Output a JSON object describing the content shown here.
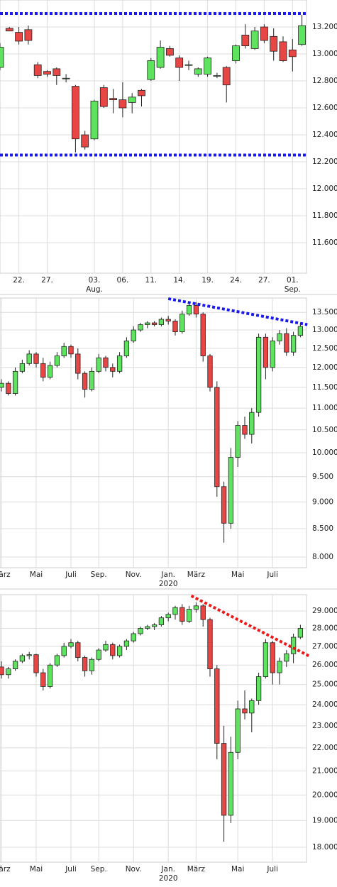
{
  "chart_data": [
    {
      "type": "candlestick",
      "log_scale": false,
      "grid": true,
      "up_color": "#5ee35e",
      "down_color": "#e84545",
      "ylim": [
        11374,
        13400
      ],
      "yticks": [
        {
          "value": 13200,
          "label": "13.200"
        },
        {
          "value": 13000,
          "label": "13.000"
        },
        {
          "value": 12800,
          "label": "12.800"
        },
        {
          "value": 12600,
          "label": "12.600"
        },
        {
          "value": 12400,
          "label": "12.400"
        },
        {
          "value": 12200,
          "label": "12.200"
        },
        {
          "value": 12000,
          "label": "12.000"
        },
        {
          "value": 11800,
          "label": "11.800"
        },
        {
          "value": 11600,
          "label": "11.600"
        }
      ],
      "categories": [
        null,
        null,
        "22.",
        null,
        null,
        "27.",
        null,
        null,
        null,
        null,
        "03.",
        null,
        null,
        "06.",
        null,
        null,
        "11.",
        null,
        null,
        "14.",
        null,
        null,
        "19.",
        null,
        null,
        "24.",
        null,
        null,
        "27.",
        null,
        null,
        "01.",
        null
      ],
      "categories_line2": [
        null,
        null,
        null,
        null,
        null,
        null,
        null,
        null,
        null,
        null,
        "Aug.",
        null,
        null,
        null,
        null,
        null,
        null,
        null,
        null,
        null,
        null,
        null,
        null,
        null,
        null,
        null,
        null,
        null,
        null,
        null,
        null,
        "Sep.",
        null
      ],
      "open": [
        12900,
        13190,
        13160,
        13180,
        12920,
        12870,
        12890,
        12820,
        12760,
        12400,
        12370,
        12750,
        12670,
        12660,
        12640,
        12730,
        12810,
        12900,
        13040,
        12970,
        12920,
        12850,
        12850,
        12840,
        12900,
        12950,
        13140,
        13040,
        13200,
        13130,
        13090,
        13030,
        13070
      ],
      "high": [
        13080,
        13200,
        13200,
        13210,
        12940,
        12880,
        12900,
        12850,
        12770,
        12430,
        12660,
        12770,
        12740,
        12790,
        12710,
        12740,
        12970,
        13100,
        13060,
        12990,
        12950,
        12900,
        12980,
        12860,
        12910,
        13070,
        13220,
        13200,
        13220,
        13190,
        13130,
        13110,
        13290
      ],
      "low": [
        12880,
        13170,
        13070,
        13070,
        12820,
        12830,
        12770,
        12790,
        12270,
        12290,
        12360,
        12600,
        12560,
        12530,
        12560,
        12610,
        12800,
        12890,
        12980,
        12800,
        12880,
        12830,
        12830,
        12820,
        12640,
        12930,
        13040,
        13030,
        13080,
        12950,
        12940,
        12870,
        13060
      ],
      "close": [
        13050,
        13170,
        13095,
        13100,
        12840,
        12850,
        12840,
        12820,
        12370,
        12310,
        12650,
        12610,
        12660,
        12600,
        12680,
        12690,
        12950,
        13050,
        12990,
        12900,
        12920,
        12890,
        12970,
        12840,
        12770,
        13060,
        13060,
        13170,
        13100,
        13020,
        12950,
        12980,
        13210
      ],
      "hlines": [
        {
          "value": 13300,
          "color": "#1a1aee"
        },
        {
          "value": 12250,
          "color": "#1a1aee"
        }
      ]
    },
    {
      "type": "candlestick",
      "log_scale": true,
      "grid": true,
      "up_color": "#5ee35e",
      "down_color": "#e84545",
      "ylim": [
        7820,
        13920
      ],
      "yticks": [
        {
          "value": 13500,
          "label": "13.500"
        },
        {
          "value": 13000,
          "label": "13.000"
        },
        {
          "value": 12500,
          "label": "12.500"
        },
        {
          "value": 12000,
          "label": "12.000"
        },
        {
          "value": 11500,
          "label": "11.500"
        },
        {
          "value": 11000,
          "label": "11.000"
        },
        {
          "value": 10500,
          "label": "10.500"
        },
        {
          "value": 10000,
          "label": "10.000"
        },
        {
          "value": 9500,
          "label": "9.500"
        },
        {
          "value": 9000,
          "label": "9.000"
        },
        {
          "value": 8500,
          "label": "8.500"
        },
        {
          "value": 8000,
          "label": "8.000"
        }
      ],
      "categories": [
        "März",
        null,
        null,
        null,
        null,
        "Mai",
        null,
        null,
        null,
        null,
        "Juli",
        null,
        null,
        null,
        "Sep.",
        null,
        null,
        null,
        null,
        "Nov.",
        null,
        null,
        null,
        null,
        "Jan.",
        null,
        null,
        null,
        "März",
        null,
        null,
        null,
        null,
        null,
        "Mai",
        null,
        null,
        null,
        null,
        "Juli",
        null,
        null,
        null,
        null
      ],
      "categories_line2": [
        null,
        null,
        null,
        null,
        null,
        null,
        null,
        null,
        null,
        null,
        null,
        null,
        null,
        null,
        null,
        null,
        null,
        null,
        null,
        null,
        null,
        null,
        null,
        null,
        "2020",
        null,
        null,
        null,
        null,
        null,
        null,
        null,
        null,
        null,
        null,
        null,
        null,
        null,
        null,
        null,
        null,
        null,
        null,
        null
      ],
      "ohlc": [
        [
          11500,
          11700,
          11400,
          11600
        ],
        [
          11600,
          11650,
          11300,
          11350
        ],
        [
          11350,
          12000,
          11300,
          11900
        ],
        [
          11900,
          12200,
          11850,
          12100
        ],
        [
          12100,
          12450,
          12050,
          12350
        ],
        [
          12350,
          12400,
          12000,
          12100
        ],
        [
          12100,
          12250,
          11650,
          11750
        ],
        [
          11750,
          12150,
          11700,
          12050
        ],
        [
          12050,
          12400,
          12000,
          12300
        ],
        [
          12300,
          12650,
          12250,
          12550
        ],
        [
          12550,
          12600,
          12250,
          12350
        ],
        [
          12350,
          12500,
          11700,
          11850
        ],
        [
          11850,
          11900,
          11250,
          11450
        ],
        [
          11450,
          12000,
          11400,
          11900
        ],
        [
          11900,
          12350,
          11850,
          12250
        ],
        [
          12250,
          12300,
          11900,
          12000
        ],
        [
          12000,
          12100,
          11750,
          11900
        ],
        [
          11900,
          12400,
          11850,
          12300
        ],
        [
          12300,
          12800,
          12250,
          12700
        ],
        [
          12700,
          13100,
          12650,
          13000
        ],
        [
          13000,
          13200,
          12950,
          13150
        ],
        [
          13150,
          13250,
          13050,
          13200
        ],
        [
          13200,
          13250,
          13100,
          13150
        ],
        [
          13150,
          13350,
          13100,
          13300
        ],
        [
          13300,
          13400,
          13150,
          13250
        ],
        [
          13250,
          13300,
          12850,
          12950
        ],
        [
          12950,
          13550,
          12900,
          13450
        ],
        [
          13450,
          13800,
          13400,
          13700
        ],
        [
          13700,
          13800,
          13350,
          13450
        ],
        [
          13450,
          13500,
          12150,
          12300
        ],
        [
          12300,
          12350,
          11400,
          11500
        ],
        [
          11500,
          11650,
          9100,
          9300
        ],
        [
          9300,
          9400,
          8250,
          8600
        ],
        [
          8600,
          10100,
          8500,
          9900
        ],
        [
          9900,
          10700,
          9700,
          10600
        ],
        [
          10600,
          10800,
          10300,
          10400
        ],
        [
          10400,
          11000,
          10200,
          10900
        ],
        [
          10900,
          12900,
          10800,
          12800
        ],
        [
          12800,
          12900,
          11700,
          12000
        ],
        [
          12000,
          12800,
          11900,
          12700
        ],
        [
          12700,
          13000,
          12600,
          12900
        ],
        [
          12900,
          13050,
          12300,
          12400
        ],
        [
          12400,
          12950,
          12300,
          12850
        ],
        [
          12850,
          13200,
          12800,
          13100
        ]
      ],
      "trend_lines": [
        {
          "x": [
            24,
            44
          ],
          "y": [
            13900,
            13150
          ],
          "color": "#1a1aee"
        }
      ]
    },
    {
      "type": "candlestick",
      "log_scale": true,
      "grid": true,
      "up_color": "#5ee35e",
      "down_color": "#e84545",
      "ylim": [
        17467,
        29970
      ],
      "yticks": [
        {
          "value": 29000,
          "label": "29.000"
        },
        {
          "value": 28000,
          "label": "28.000"
        },
        {
          "value": 27000,
          "label": "27.000"
        },
        {
          "value": 26000,
          "label": "26.000"
        },
        {
          "value": 25000,
          "label": "25.000"
        },
        {
          "value": 24000,
          "label": "24.000"
        },
        {
          "value": 23000,
          "label": "23.000"
        },
        {
          "value": 22000,
          "label": "22.000"
        },
        {
          "value": 21000,
          "label": "21.000"
        },
        {
          "value": 20000,
          "label": "20.000"
        },
        {
          "value": 19000,
          "label": "19.000"
        },
        {
          "value": 18000,
          "label": "18.000"
        }
      ],
      "categories": [
        "März",
        null,
        null,
        null,
        null,
        "Mai",
        null,
        null,
        null,
        null,
        "Juli",
        null,
        null,
        null,
        "Sep.",
        null,
        null,
        null,
        null,
        "Nov.",
        null,
        null,
        null,
        null,
        "Jan.",
        null,
        null,
        null,
        "März",
        null,
        null,
        null,
        null,
        null,
        "Mai",
        null,
        null,
        null,
        null,
        "Juli",
        null,
        null,
        null,
        null
      ],
      "categories_line2": [
        null,
        null,
        null,
        null,
        null,
        null,
        null,
        null,
        null,
        null,
        null,
        null,
        null,
        null,
        null,
        null,
        null,
        null,
        null,
        null,
        null,
        null,
        null,
        null,
        "2020",
        null,
        null,
        null,
        null,
        null,
        null,
        null,
        null,
        null,
        null,
        null,
        null,
        null,
        null,
        null,
        null,
        null,
        null,
        null
      ],
      "ohlc": [
        [
          25900,
          26200,
          25300,
          25500
        ],
        [
          25500,
          25900,
          25300,
          25800
        ],
        [
          25800,
          26300,
          25700,
          26200
        ],
        [
          26200,
          26600,
          26100,
          26500
        ],
        [
          26500,
          26700,
          26300,
          26550
        ],
        [
          26550,
          26600,
          25400,
          25600
        ],
        [
          25600,
          25800,
          24700,
          24900
        ],
        [
          24900,
          26100,
          24800,
          26000
        ],
        [
          26000,
          26600,
          25900,
          26500
        ],
        [
          26500,
          27200,
          26400,
          27000
        ],
        [
          27000,
          27400,
          26900,
          27200
        ],
        [
          27200,
          27300,
          26200,
          26400
        ],
        [
          26400,
          26500,
          25400,
          25700
        ],
        [
          25700,
          26400,
          25500,
          26300
        ],
        [
          26300,
          26900,
          26200,
          26800
        ],
        [
          26800,
          27300,
          26700,
          27100
        ],
        [
          27100,
          27200,
          26300,
          26500
        ],
        [
          26500,
          27100,
          26400,
          27000
        ],
        [
          27000,
          27400,
          26800,
          27300
        ],
        [
          27300,
          27800,
          27200,
          27700
        ],
        [
          27700,
          28100,
          27600,
          28000
        ],
        [
          28000,
          28200,
          27900,
          28100
        ],
        [
          28100,
          28300,
          27900,
          28200
        ],
        [
          28200,
          28700,
          28100,
          28600
        ],
        [
          28600,
          28900,
          28400,
          28800
        ],
        [
          28800,
          29300,
          28500,
          29200
        ],
        [
          29200,
          29400,
          28200,
          28400
        ],
        [
          28400,
          29300,
          28300,
          29100
        ],
        [
          29100,
          29500,
          28900,
          29300
        ],
        [
          29300,
          29400,
          28100,
          28500
        ],
        [
          28500,
          28600,
          25400,
          25800
        ],
        [
          25800,
          26000,
          21500,
          22200
        ],
        [
          22200,
          23000,
          18200,
          19200
        ],
        [
          19200,
          22500,
          18900,
          21800
        ],
        [
          21800,
          24200,
          21500,
          23800
        ],
        [
          23800,
          24700,
          23300,
          23600
        ],
        [
          23600,
          24300,
          22700,
          24200
        ],
        [
          24200,
          25600,
          24000,
          25400
        ],
        [
          25400,
          27400,
          25300,
          27200
        ],
        [
          27200,
          27300,
          25000,
          25600
        ],
        [
          25600,
          26400,
          25000,
          26200
        ],
        [
          26200,
          26800,
          25900,
          26600
        ],
        [
          26600,
          27700,
          26100,
          27500
        ],
        [
          27500,
          28200,
          27400,
          28000
        ]
      ],
      "trend_lines": [
        {
          "x": [
            27.3,
            44.4
          ],
          "y": [
            29900,
            26450
          ],
          "color": "#ee1a1a"
        }
      ]
    }
  ]
}
